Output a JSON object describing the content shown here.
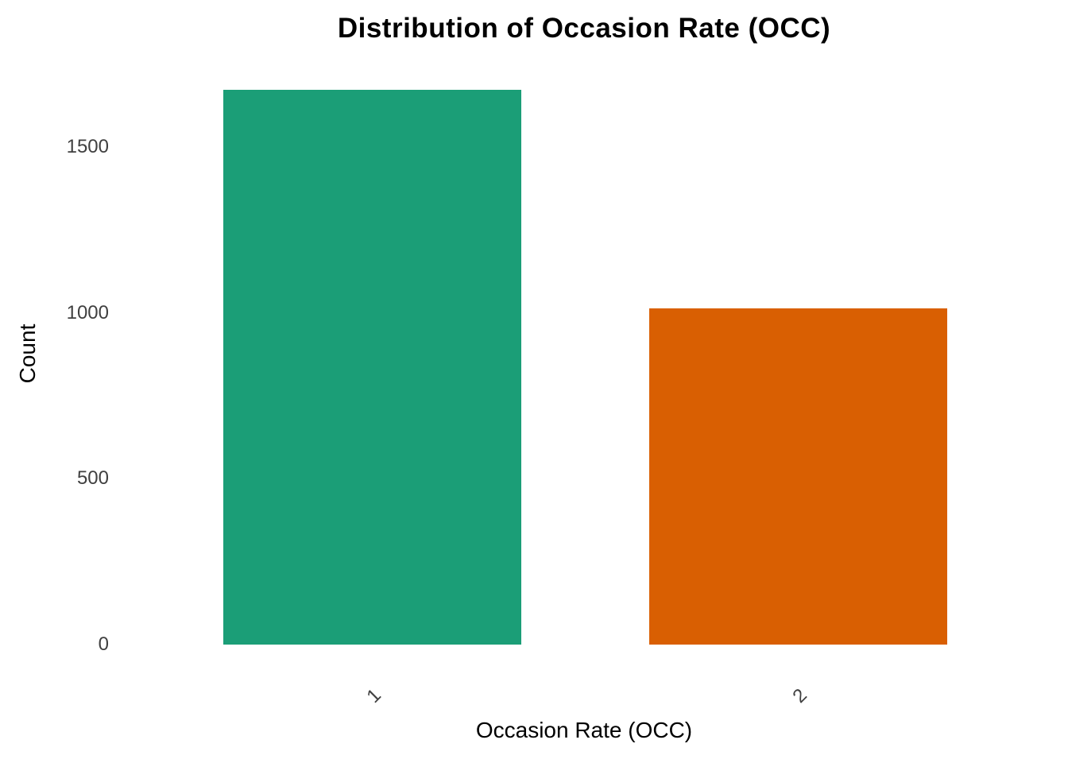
{
  "chart_data": {
    "type": "bar",
    "title": "Distribution of Occasion Rate (OCC)",
    "xlabel": "Occasion Rate (OCC)",
    "ylabel": "Count",
    "categories": [
      "1",
      "2"
    ],
    "values": [
      1672,
      1014
    ],
    "yticks": [
      0,
      500,
      1000,
      1500
    ],
    "ylim": [
      0,
      1756
    ],
    "bar_colors": [
      "#1B9E77",
      "#D95F02"
    ],
    "background_color": "#FFFFFF",
    "title_color": "#000000",
    "axis_label_color": "#000000",
    "tick_label_color": "#404040",
    "grid": false,
    "legend": false,
    "x_tick_rotation_deg": 45
  }
}
